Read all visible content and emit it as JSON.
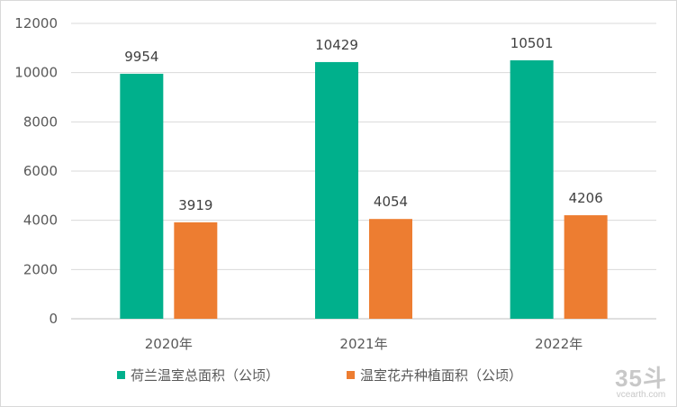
{
  "chart_data": {
    "type": "bar",
    "categories": [
      "2020年",
      "2021年",
      "2022年"
    ],
    "series": [
      {
        "name": "荷兰温室总面积（公顷）",
        "values": [
          9954,
          10429,
          10501
        ],
        "color": "#00b08c"
      },
      {
        "name": "温室花卉种植面积（公顷）",
        "values": [
          3919,
          4054,
          4206
        ],
        "color": "#ed7d31"
      }
    ],
    "ylim": [
      0,
      12000
    ],
    "yticks": [
      0,
      2000,
      4000,
      6000,
      8000,
      10000,
      12000
    ],
    "grid": true,
    "legend_position": "bottom",
    "data_labels": true
  },
  "watermark": {
    "logo": "35斗",
    "site": "vcearth.com"
  }
}
